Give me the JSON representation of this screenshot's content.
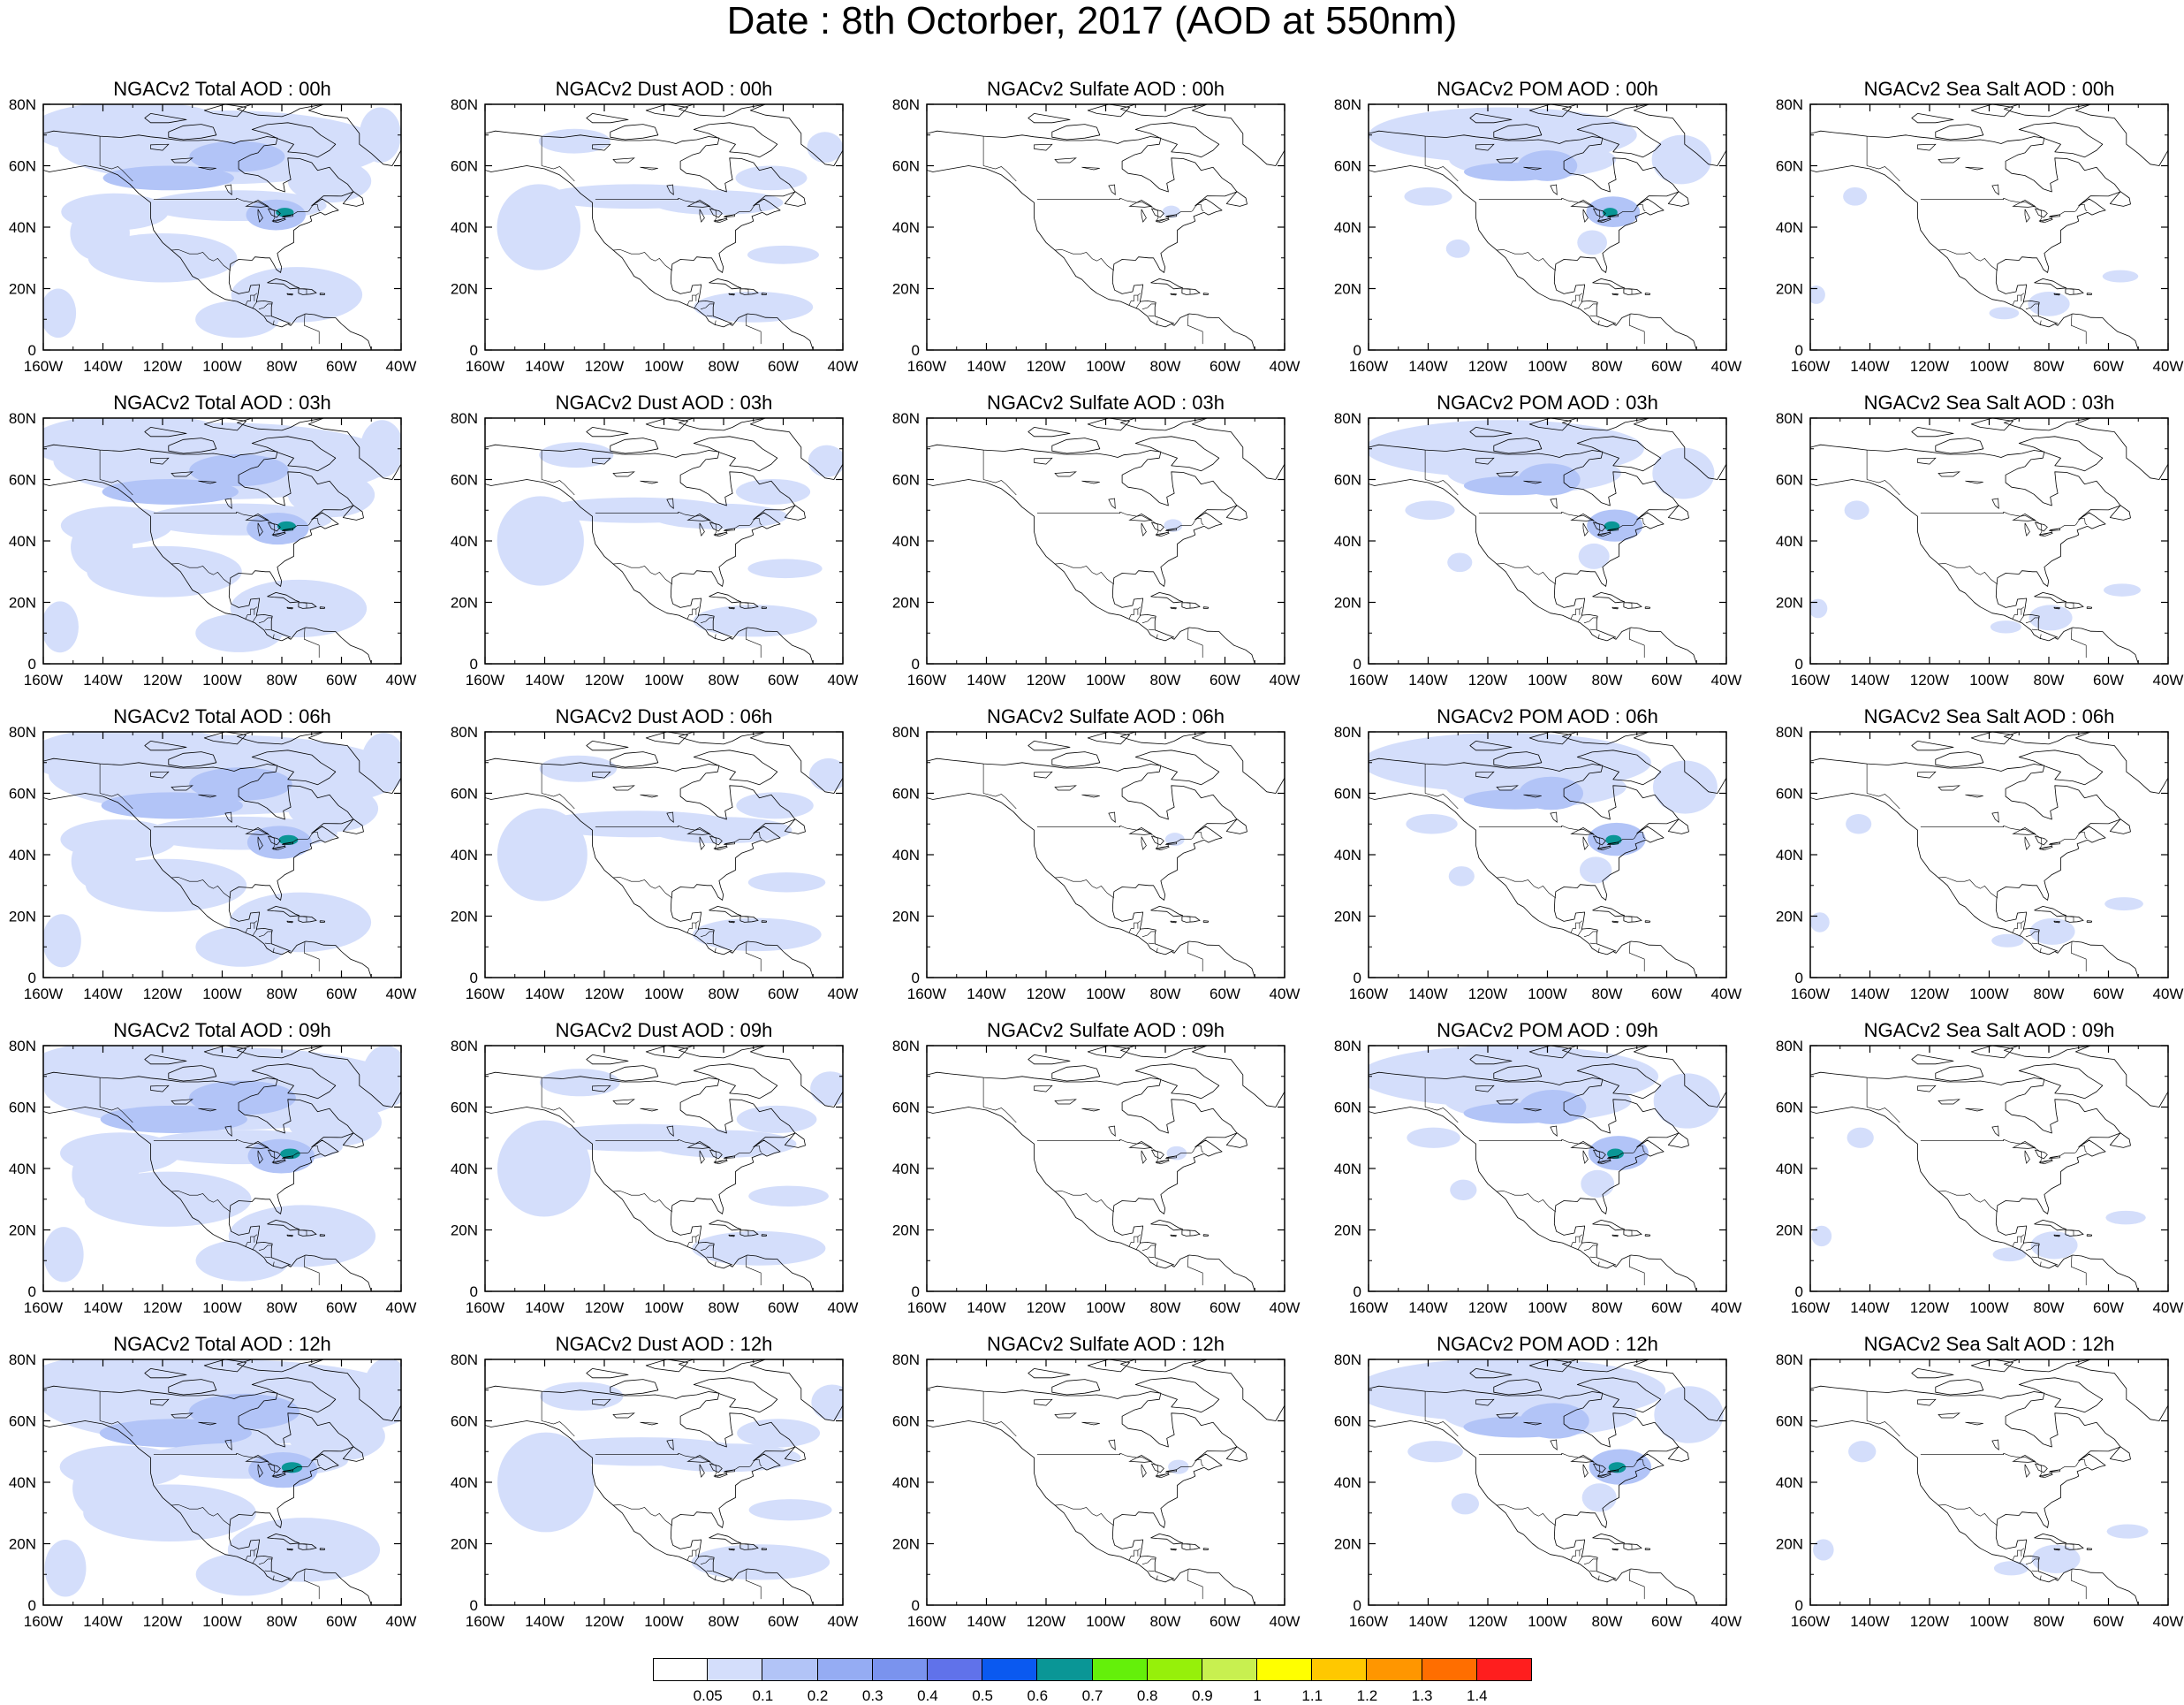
{
  "figure": {
    "title": "Date : 8th Octorber, 2017 (AOD at 550nm)"
  },
  "axes": {
    "lon_labels": [
      "160W",
      "140W",
      "120W",
      "100W",
      "80W",
      "60W",
      "40W"
    ],
    "lat_labels": [
      "0",
      "20N",
      "40N",
      "60N",
      "80N"
    ],
    "lon_range": [
      -160,
      -40
    ],
    "lat_range": [
      0,
      80
    ]
  },
  "panel_titles": [
    [
      "NGACv2 Total AOD : 00h",
      "NGACv2 Dust AOD : 00h",
      "NGACv2 Sulfate AOD : 00h",
      "NGACv2 POM AOD : 00h",
      "NGACv2 Sea Salt AOD : 00h"
    ],
    [
      "NGACv2 Total AOD : 03h",
      "NGACv2 Dust AOD : 03h",
      "NGACv2 Sulfate AOD : 03h",
      "NGACv2 POM AOD : 03h",
      "NGACv2 Sea Salt AOD : 03h"
    ],
    [
      "NGACv2 Total AOD : 06h",
      "NGACv2 Dust AOD : 06h",
      "NGACv2 Sulfate AOD : 06h",
      "NGACv2 POM AOD : 06h",
      "NGACv2 Sea Salt AOD : 06h"
    ],
    [
      "NGACv2 Total AOD : 09h",
      "NGACv2 Dust AOD : 09h",
      "NGACv2 Sulfate AOD : 09h",
      "NGACv2 POM AOD : 09h",
      "NGACv2 Sea Salt  AOD : 09h"
    ],
    [
      "NGACv2 Total AOD  : 12h",
      "NGACv2 Dust AOD : 12h",
      "NGACv2 Sulfate AOD : 12h",
      "NGACv2 POM  AOD : 12h",
      "NGACv2 Sea Salt  AOD : 12h"
    ]
  ],
  "colorbar": {
    "labels": [
      "0.05",
      "0.1",
      "0.2",
      "0.3",
      "0.4",
      "0.5",
      "0.6",
      "0.7",
      "0.8",
      "0.9",
      "1",
      "1.1",
      "1.2",
      "1.3",
      "1.4"
    ],
    "colors": [
      "#ffffff",
      "#d4defb",
      "#b2c4f7",
      "#95acf3",
      "#7a93ee",
      "#6072ea",
      "#0a59f0",
      "#0a9696",
      "#64f00a",
      "#96f00a",
      "#c8f050",
      "#ffff00",
      "#ffc800",
      "#ff9600",
      "#ff6e00",
      "#ff1e1e"
    ]
  },
  "species_colors": {
    "land_outline": "#000000",
    "light_aod": "#d4defb",
    "moderate_aod": "#b2c4f7",
    "higher_aod": "#95acf3",
    "peak_aod": "#0a9696"
  }
}
